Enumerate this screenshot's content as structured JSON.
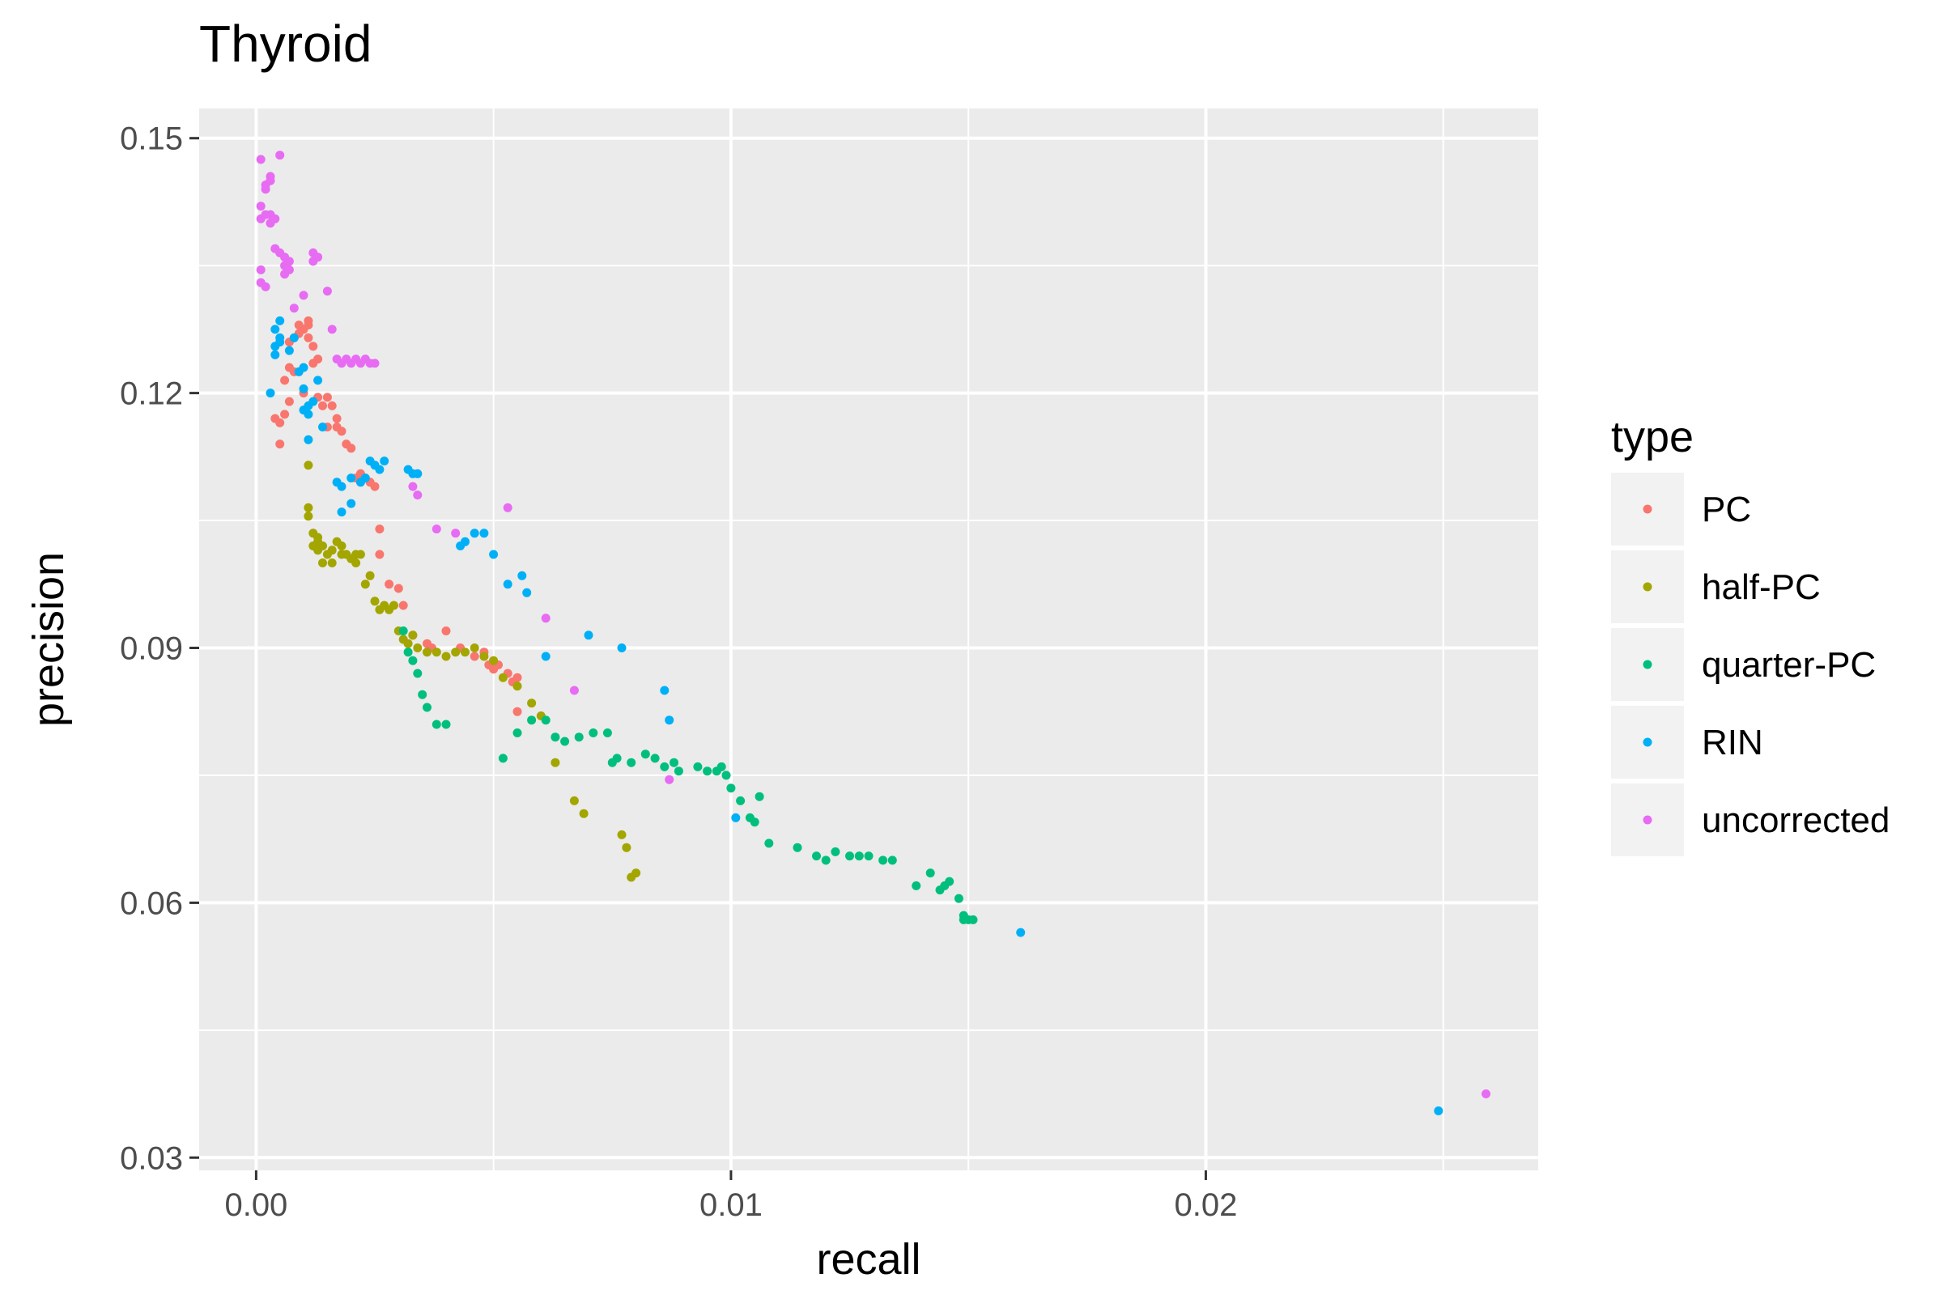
{
  "chart_data": {
    "type": "scatter",
    "title": "Thyroid",
    "xlabel": "recall",
    "ylabel": "precision",
    "xlim": [
      -0.0012,
      0.027
    ],
    "ylim": [
      0.0285,
      0.1535
    ],
    "x_ticks": [
      0.0,
      0.01,
      0.02
    ],
    "x_tick_labels": [
      "0.00",
      "0.01",
      "0.02"
    ],
    "y_ticks": [
      0.03,
      0.06,
      0.09,
      0.12,
      0.15
    ],
    "y_tick_labels": [
      "0.03",
      "0.06",
      "0.09",
      "0.12",
      "0.15"
    ],
    "grid": true,
    "legend": {
      "title": "type",
      "position": "right"
    },
    "series": [
      {
        "name": "PC",
        "color": "#F8766D",
        "points": [
          [
            0.0004,
            0.117
          ],
          [
            0.0005,
            0.114
          ],
          [
            0.0005,
            0.1165
          ],
          [
            0.0006,
            0.1175
          ],
          [
            0.0006,
            0.1215
          ],
          [
            0.0007,
            0.119
          ],
          [
            0.0007,
            0.123
          ],
          [
            0.0007,
            0.126
          ],
          [
            0.0008,
            0.1225
          ],
          [
            0.0008,
            0.1265
          ],
          [
            0.0009,
            0.127
          ],
          [
            0.0009,
            0.128
          ],
          [
            0.001,
            0.1275
          ],
          [
            0.001,
            0.12
          ],
          [
            0.0011,
            0.1285
          ],
          [
            0.0011,
            0.128
          ],
          [
            0.0011,
            0.1265
          ],
          [
            0.0012,
            0.1235
          ],
          [
            0.0012,
            0.1255
          ],
          [
            0.0013,
            0.1195
          ],
          [
            0.0013,
            0.124
          ],
          [
            0.0014,
            0.1185
          ],
          [
            0.0015,
            0.116
          ],
          [
            0.0015,
            0.1195
          ],
          [
            0.0016,
            0.1185
          ],
          [
            0.0017,
            0.116
          ],
          [
            0.0017,
            0.117
          ],
          [
            0.0018,
            0.1155
          ],
          [
            0.0019,
            0.114
          ],
          [
            0.002,
            0.1135
          ],
          [
            0.0021,
            0.11
          ],
          [
            0.0022,
            0.1105
          ],
          [
            0.0023,
            0.11
          ],
          [
            0.0024,
            0.1095
          ],
          [
            0.0025,
            0.109
          ],
          [
            0.0026,
            0.104
          ],
          [
            0.0026,
            0.101
          ],
          [
            0.0028,
            0.0975
          ],
          [
            0.003,
            0.097
          ],
          [
            0.0031,
            0.095
          ],
          [
            0.0033,
            0.0915
          ],
          [
            0.0036,
            0.0905
          ],
          [
            0.0037,
            0.09
          ],
          [
            0.004,
            0.092
          ],
          [
            0.0043,
            0.09
          ],
          [
            0.0046,
            0.089
          ],
          [
            0.0048,
            0.0895
          ],
          [
            0.0049,
            0.088
          ],
          [
            0.005,
            0.0875
          ],
          [
            0.0051,
            0.088
          ],
          [
            0.0053,
            0.087
          ],
          [
            0.0054,
            0.086
          ],
          [
            0.0055,
            0.0825
          ],
          [
            0.0055,
            0.0865
          ]
        ]
      },
      {
        "name": "half-PC",
        "color": "#A3A500",
        "points": [
          [
            0.0011,
            0.1115
          ],
          [
            0.0011,
            0.1065
          ],
          [
            0.0011,
            0.1055
          ],
          [
            0.0012,
            0.1035
          ],
          [
            0.0012,
            0.102
          ],
          [
            0.0013,
            0.1025
          ],
          [
            0.0013,
            0.103
          ],
          [
            0.0013,
            0.1015
          ],
          [
            0.0014,
            0.1
          ],
          [
            0.0014,
            0.102
          ],
          [
            0.0015,
            0.101
          ],
          [
            0.0016,
            0.1015
          ],
          [
            0.0016,
            0.1
          ],
          [
            0.0017,
            0.1025
          ],
          [
            0.0018,
            0.102
          ],
          [
            0.0018,
            0.101
          ],
          [
            0.0019,
            0.101
          ],
          [
            0.002,
            0.1005
          ],
          [
            0.0021,
            0.1
          ],
          [
            0.0021,
            0.101
          ],
          [
            0.0022,
            0.101
          ],
          [
            0.0023,
            0.0975
          ],
          [
            0.0024,
            0.0985
          ],
          [
            0.0025,
            0.0955
          ],
          [
            0.0026,
            0.0945
          ],
          [
            0.0027,
            0.095
          ],
          [
            0.0028,
            0.0945
          ],
          [
            0.0029,
            0.095
          ],
          [
            0.003,
            0.092
          ],
          [
            0.0031,
            0.091
          ],
          [
            0.0032,
            0.0905
          ],
          [
            0.0033,
            0.0915
          ],
          [
            0.0034,
            0.09
          ],
          [
            0.0036,
            0.0895
          ],
          [
            0.0038,
            0.0895
          ],
          [
            0.004,
            0.089
          ],
          [
            0.0042,
            0.0895
          ],
          [
            0.0044,
            0.0895
          ],
          [
            0.0046,
            0.09
          ],
          [
            0.0048,
            0.089
          ],
          [
            0.005,
            0.0885
          ],
          [
            0.0052,
            0.0865
          ],
          [
            0.0055,
            0.0855
          ],
          [
            0.0058,
            0.0835
          ],
          [
            0.006,
            0.082
          ],
          [
            0.0063,
            0.0765
          ],
          [
            0.0067,
            0.072
          ],
          [
            0.0069,
            0.0705
          ],
          [
            0.0077,
            0.068
          ],
          [
            0.0078,
            0.0665
          ],
          [
            0.0079,
            0.063
          ],
          [
            0.008,
            0.0635
          ]
        ]
      },
      {
        "name": "quarter-PC",
        "color": "#00BF7D",
        "points": [
          [
            0.0031,
            0.092
          ],
          [
            0.0032,
            0.0895
          ],
          [
            0.0033,
            0.0885
          ],
          [
            0.0034,
            0.087
          ],
          [
            0.0035,
            0.0845
          ],
          [
            0.0036,
            0.083
          ],
          [
            0.0038,
            0.081
          ],
          [
            0.004,
            0.081
          ],
          [
            0.0052,
            0.077
          ],
          [
            0.0055,
            0.08
          ],
          [
            0.0058,
            0.0815
          ],
          [
            0.0061,
            0.0815
          ],
          [
            0.0063,
            0.0795
          ],
          [
            0.0065,
            0.079
          ],
          [
            0.0068,
            0.0795
          ],
          [
            0.0071,
            0.08
          ],
          [
            0.0074,
            0.08
          ],
          [
            0.0075,
            0.0765
          ],
          [
            0.0076,
            0.077
          ],
          [
            0.0079,
            0.0765
          ],
          [
            0.0082,
            0.0775
          ],
          [
            0.0084,
            0.077
          ],
          [
            0.0086,
            0.076
          ],
          [
            0.0088,
            0.0765
          ],
          [
            0.0089,
            0.0755
          ],
          [
            0.0093,
            0.076
          ],
          [
            0.0095,
            0.0755
          ],
          [
            0.0097,
            0.0755
          ],
          [
            0.0098,
            0.076
          ],
          [
            0.0099,
            0.075
          ],
          [
            0.01,
            0.0735
          ],
          [
            0.0102,
            0.072
          ],
          [
            0.0104,
            0.07
          ],
          [
            0.0105,
            0.0695
          ],
          [
            0.0106,
            0.0725
          ],
          [
            0.0108,
            0.067
          ],
          [
            0.0114,
            0.0665
          ],
          [
            0.0118,
            0.0655
          ],
          [
            0.012,
            0.065
          ],
          [
            0.0122,
            0.066
          ],
          [
            0.0125,
            0.0655
          ],
          [
            0.0127,
            0.0655
          ],
          [
            0.0129,
            0.0655
          ],
          [
            0.0132,
            0.065
          ],
          [
            0.0134,
            0.065
          ],
          [
            0.0139,
            0.062
          ],
          [
            0.0142,
            0.0635
          ],
          [
            0.0144,
            0.0615
          ],
          [
            0.0145,
            0.062
          ],
          [
            0.0146,
            0.0625
          ],
          [
            0.0148,
            0.0605
          ],
          [
            0.0149,
            0.0585
          ],
          [
            0.0149,
            0.058
          ],
          [
            0.015,
            0.058
          ],
          [
            0.0151,
            0.058
          ]
        ]
      },
      {
        "name": "RIN",
        "color": "#00B0F6",
        "points": [
          [
            0.0003,
            0.12
          ],
          [
            0.0004,
            0.1245
          ],
          [
            0.0004,
            0.1255
          ],
          [
            0.0004,
            0.1275
          ],
          [
            0.0005,
            0.1265
          ],
          [
            0.0005,
            0.126
          ],
          [
            0.0005,
            0.1285
          ],
          [
            0.0007,
            0.125
          ],
          [
            0.0008,
            0.1265
          ],
          [
            0.0009,
            0.1225
          ],
          [
            0.001,
            0.123
          ],
          [
            0.001,
            0.1205
          ],
          [
            0.001,
            0.118
          ],
          [
            0.0011,
            0.1185
          ],
          [
            0.0011,
            0.1145
          ],
          [
            0.0011,
            0.1175
          ],
          [
            0.0012,
            0.119
          ],
          [
            0.0013,
            0.1215
          ],
          [
            0.0014,
            0.116
          ],
          [
            0.0017,
            0.1095
          ],
          [
            0.0018,
            0.109
          ],
          [
            0.0018,
            0.106
          ],
          [
            0.002,
            0.107
          ],
          [
            0.002,
            0.11
          ],
          [
            0.0022,
            0.1095
          ],
          [
            0.0023,
            0.11
          ],
          [
            0.0024,
            0.112
          ],
          [
            0.0025,
            0.1115
          ],
          [
            0.0026,
            0.111
          ],
          [
            0.0027,
            0.112
          ],
          [
            0.0032,
            0.111
          ],
          [
            0.0033,
            0.1105
          ],
          [
            0.0034,
            0.1105
          ],
          [
            0.0043,
            0.102
          ],
          [
            0.0044,
            0.1025
          ],
          [
            0.0046,
            0.1035
          ],
          [
            0.0048,
            0.1035
          ],
          [
            0.005,
            0.101
          ],
          [
            0.0053,
            0.0975
          ],
          [
            0.0056,
            0.0985
          ],
          [
            0.0057,
            0.0965
          ],
          [
            0.0061,
            0.089
          ],
          [
            0.007,
            0.0915
          ],
          [
            0.0077,
            0.09
          ],
          [
            0.0086,
            0.085
          ],
          [
            0.0087,
            0.0815
          ],
          [
            0.0101,
            0.07
          ],
          [
            0.0161,
            0.0565
          ],
          [
            0.0249,
            0.0355
          ]
        ]
      },
      {
        "name": "uncorrected",
        "color": "#E76BF3",
        "points": [
          [
            0.0001,
            0.1475
          ],
          [
            0.0001,
            0.142
          ],
          [
            0.0001,
            0.1405
          ],
          [
            0.0001,
            0.1345
          ],
          [
            0.0001,
            0.133
          ],
          [
            0.0002,
            0.1445
          ],
          [
            0.0002,
            0.144
          ],
          [
            0.0002,
            0.141
          ],
          [
            0.0002,
            0.1325
          ],
          [
            0.0003,
            0.1455
          ],
          [
            0.0003,
            0.145
          ],
          [
            0.0003,
            0.141
          ],
          [
            0.0003,
            0.14
          ],
          [
            0.0004,
            0.1405
          ],
          [
            0.0004,
            0.137
          ],
          [
            0.0005,
            0.148
          ],
          [
            0.0005,
            0.1365
          ],
          [
            0.0006,
            0.135
          ],
          [
            0.0006,
            0.134
          ],
          [
            0.0006,
            0.136
          ],
          [
            0.0007,
            0.1355
          ],
          [
            0.0007,
            0.1345
          ],
          [
            0.0008,
            0.13
          ],
          [
            0.001,
            0.1315
          ],
          [
            0.0012,
            0.1355
          ],
          [
            0.0012,
            0.1365
          ],
          [
            0.0013,
            0.136
          ],
          [
            0.0015,
            0.132
          ],
          [
            0.0016,
            0.1275
          ],
          [
            0.0017,
            0.124
          ],
          [
            0.0018,
            0.1235
          ],
          [
            0.0019,
            0.124
          ],
          [
            0.002,
            0.1235
          ],
          [
            0.0021,
            0.124
          ],
          [
            0.0022,
            0.1235
          ],
          [
            0.0023,
            0.124
          ],
          [
            0.0024,
            0.1235
          ],
          [
            0.0025,
            0.1235
          ],
          [
            0.0033,
            0.109
          ],
          [
            0.0034,
            0.108
          ],
          [
            0.0038,
            0.104
          ],
          [
            0.0042,
            0.1035
          ],
          [
            0.0053,
            0.1065
          ],
          [
            0.0061,
            0.0935
          ],
          [
            0.0067,
            0.085
          ],
          [
            0.0087,
            0.0745
          ],
          [
            0.0259,
            0.0375
          ]
        ]
      }
    ]
  }
}
